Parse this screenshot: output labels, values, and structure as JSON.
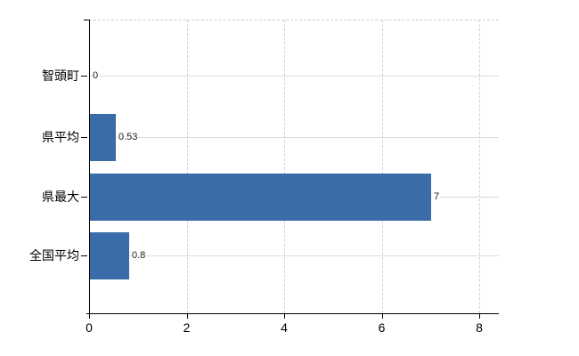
{
  "chart_data": {
    "type": "bar",
    "orientation": "horizontal",
    "categories": [
      "智頭町",
      "県平均",
      "県最大",
      "全国平均"
    ],
    "values": [
      0,
      0.53,
      7,
      0.8
    ],
    "value_labels": [
      "0",
      "0.53",
      "7",
      "0.8"
    ],
    "x_tick_labels": [
      "0",
      "2",
      "4",
      "6",
      "8"
    ],
    "x_tick_values": [
      0,
      2,
      4,
      6,
      8
    ],
    "xlim": [
      0,
      8.4
    ],
    "title": "",
    "xlabel": "",
    "ylabel": "",
    "grid": true,
    "legend": false,
    "bar_color": "#3a6caa",
    "axis_color": "#000000",
    "background_color": "#ffffff"
  }
}
